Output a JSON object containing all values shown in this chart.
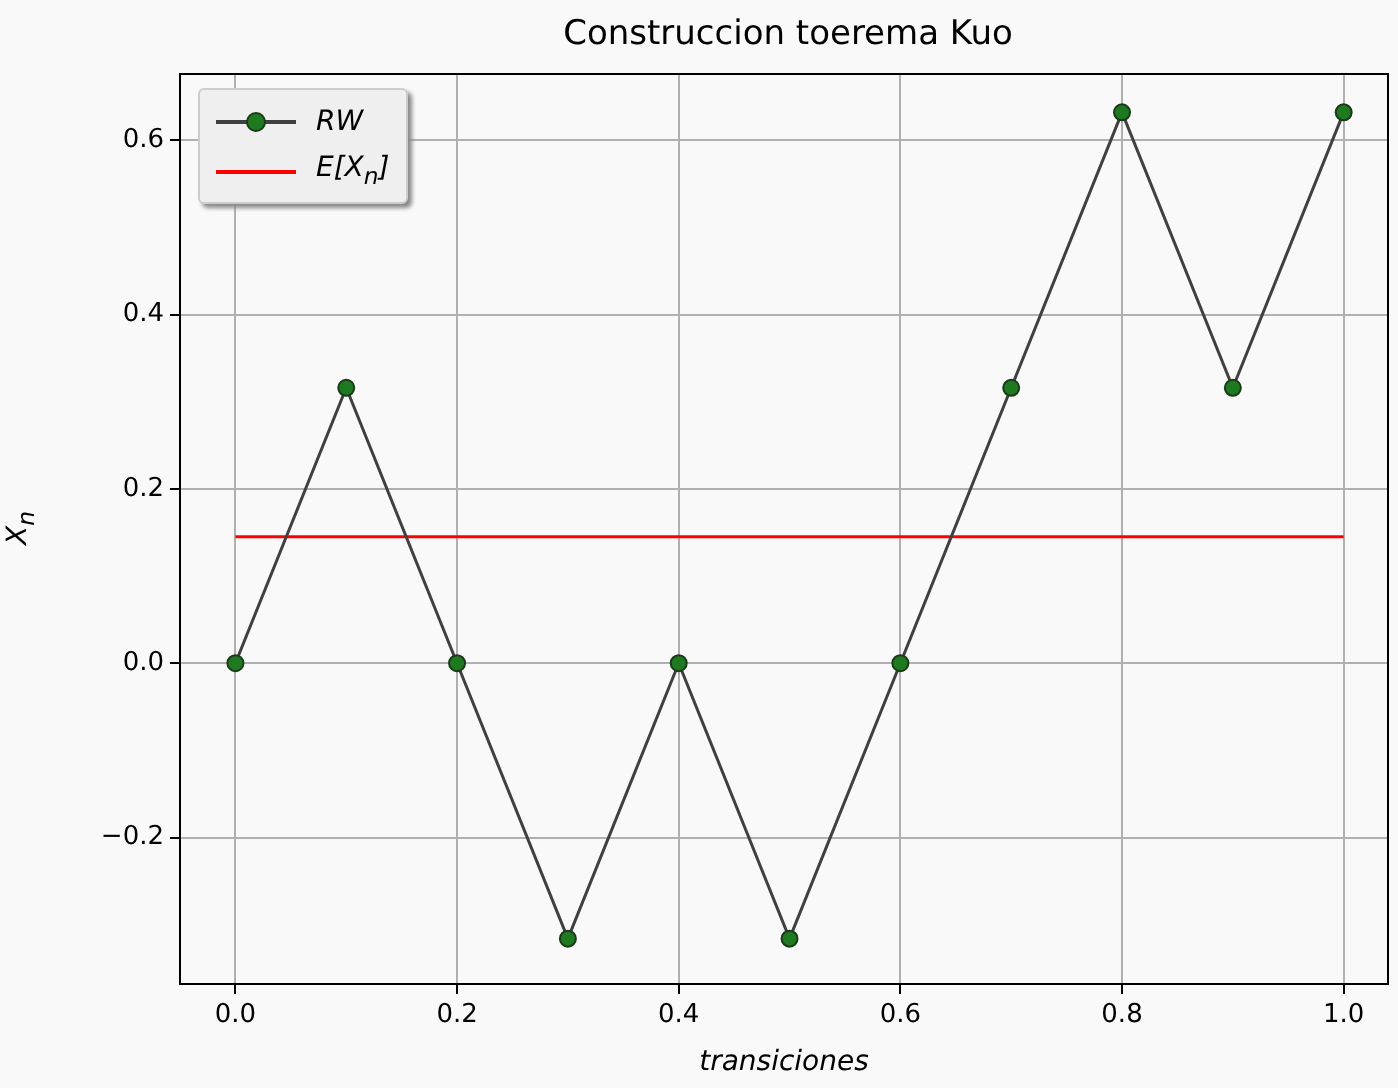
{
  "chart_data": {
    "type": "line",
    "title": "Construccion toerema Kuo",
    "xlabel": "transiciones",
    "ylabel": "X$_{n}$",
    "x": [
      0,
      0.1,
      0.2,
      0.3,
      0.4,
      0.5,
      0.6,
      0.7,
      0.8,
      0.9,
      1.0
    ],
    "series": [
      {
        "name": "RW",
        "color": "#404040",
        "marker": "circle",
        "values": [
          0,
          0.316,
          0,
          -0.316,
          0,
          -0.316,
          0,
          0.316,
          0.632,
          0.316,
          0.632
        ]
      },
      {
        "name": "E[X$_{n}$]",
        "color": "#ff0000",
        "marker": "none",
        "x": [
          0,
          1.0
        ],
        "values": [
          0.145,
          0.145
        ]
      }
    ],
    "xlim": [
      -0.05,
      1.04
    ],
    "ylim": [
      -0.368,
      0.676
    ],
    "xticks": [
      {
        "value": 0,
        "label": "0.0"
      },
      {
        "value": 0.2,
        "label": "0.2"
      },
      {
        "value": 0.4,
        "label": "0.4"
      },
      {
        "value": 0.6,
        "label": "0.6"
      },
      {
        "value": 0.8,
        "label": "0.8"
      },
      {
        "value": 1.0,
        "label": "1.0"
      }
    ],
    "yticks": [
      {
        "value": -0.2,
        "label": "−0.2"
      },
      {
        "value": 0,
        "label": "0.0"
      },
      {
        "value": 0.2,
        "label": "0.2"
      },
      {
        "value": 0.4,
        "label": "0.4"
      },
      {
        "value": 0.6,
        "label": "0.6"
      }
    ],
    "grid": true,
    "legend": "top left"
  }
}
